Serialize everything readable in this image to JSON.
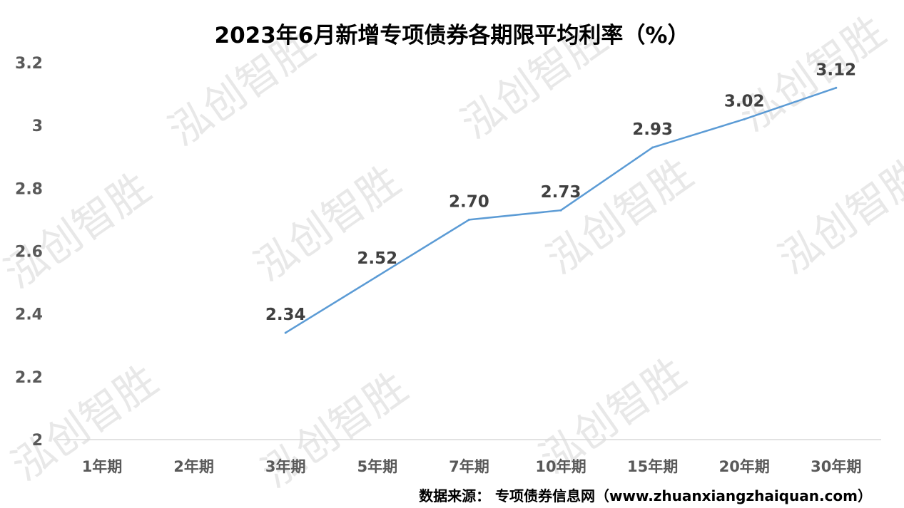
{
  "watermark": "泓创智胜",
  "source": "数据来源： 专项债券信息网（www.zhuanxiangzhaiquan.com）",
  "chart_data": {
    "type": "line",
    "title": "2023年6月新增专项债券各期限平均利率（%）",
    "categories": [
      "1年期",
      "2年期",
      "3年期",
      "5年期",
      "7年期",
      "10年期",
      "15年期",
      "20年期",
      "30年期"
    ],
    "series": [
      {
        "values": [
          null,
          null,
          2.34,
          2.52,
          2.7,
          2.73,
          2.93,
          3.02,
          3.12
        ]
      }
    ],
    "data_labels": [
      "",
      "",
      "2.34",
      "2.52",
      "2.70",
      "2.73",
      "2.93",
      "3.02",
      "3.12"
    ],
    "yticks": [
      "2",
      "2.2",
      "2.4",
      "2.6",
      "2.8",
      "3",
      "3.2"
    ],
    "ylim": [
      2,
      3.2
    ],
    "grid": false,
    "line_color": "#5b9bd5"
  }
}
